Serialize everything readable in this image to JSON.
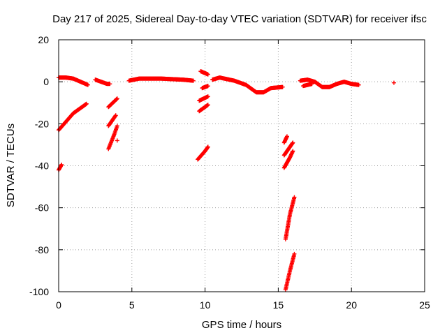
{
  "chart_data": {
    "type": "scatter",
    "title": "Day 217 of 2025, Sidereal Day-to-day VTEC variation (SDTVAR) for receiver ifsc",
    "xlabel": "GPS time / hours",
    "ylabel": "SDTVAR / TECUs",
    "xlim": [
      0,
      25
    ],
    "ylim": [
      -100,
      20
    ],
    "xticks": [
      "0",
      "5",
      "10",
      "15",
      "20",
      "25"
    ],
    "yticks": [
      "20",
      "0",
      "-20",
      "-40",
      "-60",
      "-80",
      "-100"
    ],
    "grid": true,
    "marker": "plus",
    "color": "#ff0000",
    "series": [
      {
        "segments": [
          [
            [
              0.0,
              2.0
            ],
            [
              0.5,
              2.0
            ],
            [
              1.0,
              1.5
            ],
            [
              1.5,
              0.0
            ],
            [
              2.0,
              -1.5
            ]
          ],
          [
            [
              2.5,
              1.0
            ],
            [
              2.9,
              0.0
            ],
            [
              3.3,
              -1.0
            ],
            [
              3.5,
              -1.0
            ]
          ],
          [
            [
              4.8,
              0.5
            ],
            [
              5.5,
              1.5
            ],
            [
              7.0,
              1.5
            ],
            [
              8.5,
              1.0
            ],
            [
              9.2,
              0.5
            ]
          ],
          [
            [
              9.7,
              5.0
            ],
            [
              10.2,
              3.5
            ]
          ],
          [
            [
              9.8,
              -3.0
            ],
            [
              10.2,
              -2.0
            ]
          ],
          [
            [
              9.6,
              -9.0
            ],
            [
              10.2,
              -7.0
            ]
          ],
          [
            [
              9.6,
              -14.0
            ],
            [
              10.2,
              -11.0
            ]
          ],
          [
            [
              10.5,
              1.0
            ],
            [
              11.0,
              2.0
            ],
            [
              12.0,
              0.5
            ],
            [
              12.8,
              -1.5
            ],
            [
              13.5,
              -5.0
            ],
            [
              14.0,
              -5.0
            ],
            [
              14.5,
              -3.0
            ],
            [
              15.3,
              -2.5
            ]
          ],
          [
            [
              0.0,
              -23.0
            ],
            [
              0.5,
              -19.0
            ],
            [
              1.0,
              -15.0
            ],
            [
              1.5,
              -12.5
            ],
            [
              1.9,
              -10.5
            ]
          ],
          [
            [
              0.0,
              -42.0
            ],
            [
              0.2,
              -39.5
            ]
          ],
          [
            [
              3.4,
              -12.0
            ],
            [
              4.0,
              -8.0
            ]
          ],
          [
            [
              3.4,
              -21.0
            ],
            [
              3.9,
              -16.0
            ]
          ],
          [
            [
              3.4,
              -32.0
            ],
            [
              3.8,
              -25.0
            ],
            [
              4.0,
              -21.0
            ]
          ],
          [
            [
              4.0,
              -28.0
            ]
          ],
          [
            [
              9.5,
              -37.0
            ],
            [
              10.0,
              -33.0
            ],
            [
              10.2,
              -31.0
            ]
          ],
          [
            [
              15.4,
              -29.0
            ],
            [
              15.6,
              -26.0
            ]
          ],
          [
            [
              15.4,
              -35.0
            ],
            [
              15.8,
              -31.0
            ],
            [
              16.0,
              -29.0
            ]
          ],
          [
            [
              15.4,
              -41.0
            ],
            [
              15.8,
              -36.0
            ],
            [
              16.0,
              -33.0
            ]
          ],
          [
            [
              15.5,
              -75.0
            ],
            [
              15.8,
              -63.0
            ],
            [
              16.1,
              -55.0
            ]
          ],
          [
            [
              15.5,
              -99.0
            ],
            [
              15.8,
              -90.0
            ],
            [
              16.1,
              -82.0
            ]
          ],
          [
            [
              16.5,
              0.5
            ],
            [
              17.0,
              1.0
            ],
            [
              17.5,
              0.0
            ],
            [
              18.0,
              -2.5
            ],
            [
              18.5,
              -2.5
            ],
            [
              19.0,
              -1.0
            ],
            [
              19.5,
              0.0
            ],
            [
              20.0,
              -1.0
            ],
            [
              20.5,
              -1.5
            ]
          ],
          [
            [
              16.7,
              -2.0
            ],
            [
              17.3,
              -1.0
            ]
          ],
          [
            [
              22.9,
              -0.5
            ]
          ]
        ]
      }
    ]
  }
}
